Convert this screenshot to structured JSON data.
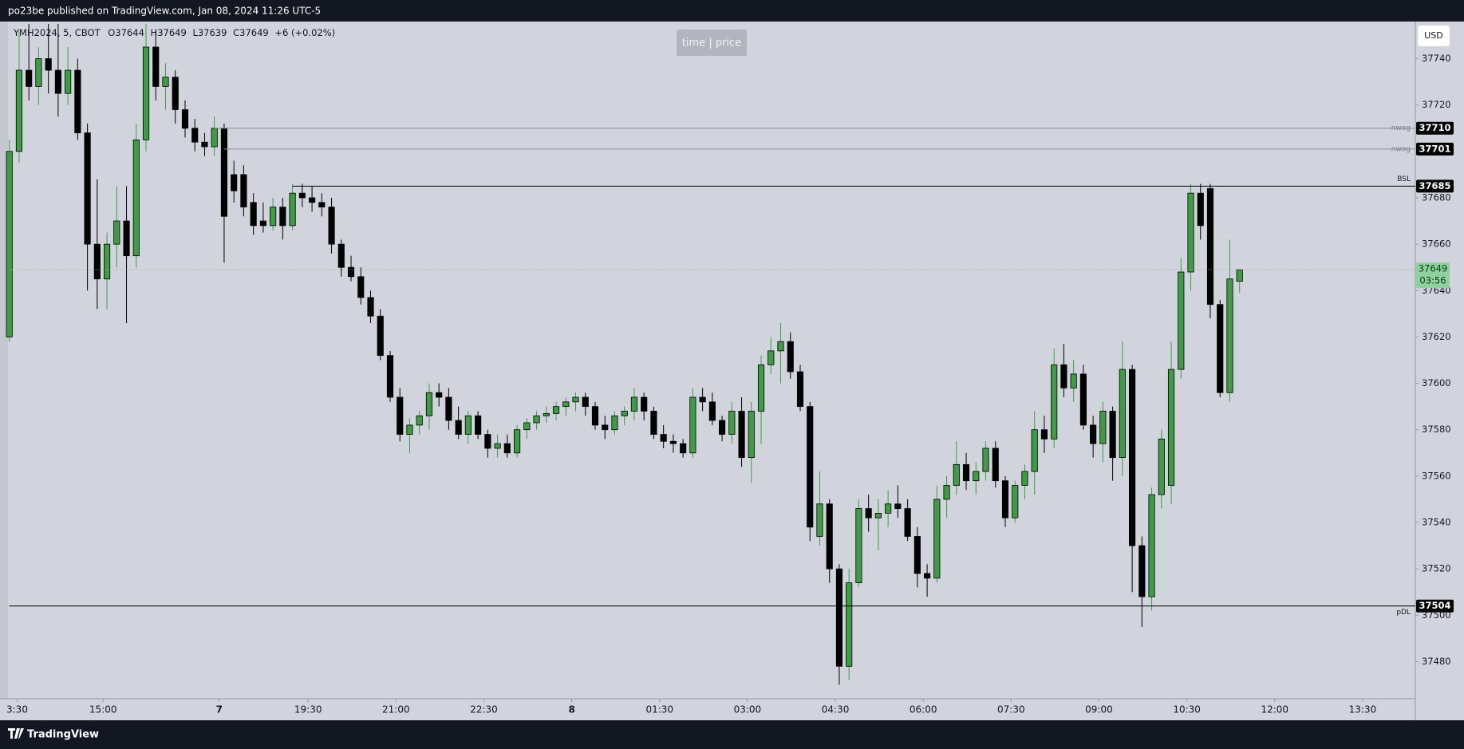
{
  "header": "po23be published on TradingView.com, Jan 08, 2024 11:26 UTC-5",
  "footer": "TradingView",
  "chart_data": {
    "type": "candlestick",
    "legend": {
      "symbol": "YMH2024, 5, CBOT",
      "open": "O37644",
      "high": "H37649",
      "low": "L37639",
      "close": "C37649",
      "change": "+6 (+0.02%)"
    },
    "crosshair_label": "time | price",
    "currency": "USD",
    "countdown": "03:56",
    "up_color": "#3f9b45",
    "down_color": "#000000",
    "grid": false,
    "ylim": [
      37464,
      37756
    ],
    "yticks": [
      37480,
      37500,
      37520,
      37540,
      37560,
      37580,
      37600,
      37620,
      37640,
      37660,
      37680,
      37720,
      37740
    ],
    "xlim": [
      0,
      144
    ],
    "xticks": [
      {
        "value": 0.8,
        "label": "3:30"
      },
      {
        "value": 9.6,
        "label": "15:00"
      },
      {
        "value": 21.5,
        "label": "7"
      },
      {
        "value": 30.6,
        "label": "19:30"
      },
      {
        "value": 39.6,
        "label": "21:00"
      },
      {
        "value": 48.6,
        "label": "22:30"
      },
      {
        "value": 57.6,
        "label": "8"
      },
      {
        "value": 66.6,
        "label": "01:30"
      },
      {
        "value": 75.6,
        "label": "03:00"
      },
      {
        "value": 84.6,
        "label": "04:30"
      },
      {
        "value": 93.6,
        "label": "06:00"
      },
      {
        "value": 102.6,
        "label": "07:30"
      },
      {
        "value": 111.6,
        "label": "09:00"
      },
      {
        "value": 120.6,
        "label": "10:30"
      },
      {
        "value": 129.6,
        "label": "12:00"
      },
      {
        "value": 138.6,
        "label": "13:30"
      }
    ],
    "levels": [
      {
        "name": "nwog",
        "value": 37710,
        "from": 21,
        "color": "#8a8e99"
      },
      {
        "name": "nwog",
        "value": 37701,
        "from": 22,
        "color": "#8a8e99"
      },
      {
        "name": "BSL",
        "value": 37685,
        "from": 29,
        "color": "#000000"
      },
      {
        "name": "pDL",
        "value": 37504,
        "from": 0,
        "color": "#000000"
      }
    ],
    "candles": {
      "open": [
        37620,
        37700,
        37735,
        37728,
        37740,
        37735,
        37725,
        37735,
        37708,
        37660,
        37645,
        37660,
        37670,
        37655,
        37705,
        37745,
        37728,
        37732,
        37718,
        37710,
        37704,
        37702,
        37710,
        37690,
        37690,
        37678,
        37670,
        37668,
        37676,
        37668,
        37682,
        37680,
        37678,
        37676,
        37660,
        37650,
        37646,
        37637,
        37629,
        37612,
        37594,
        37578,
        37582,
        37586,
        37596,
        37594,
        37584,
        37578,
        37586,
        37578,
        37572,
        37574,
        37570,
        37580,
        37583,
        37586,
        37587,
        37590,
        37592,
        37594,
        37590,
        37582,
        37580,
        37586,
        37588,
        37594,
        37588,
        37578,
        37575,
        37574,
        37570,
        37594,
        37592,
        37584,
        37578,
        37588,
        37568,
        37588,
        37608,
        37614,
        37618,
        37605,
        37590,
        37534,
        37548,
        37520,
        37478,
        37514,
        37546,
        37542,
        37544,
        37548,
        37546,
        37534,
        37518,
        37516,
        37550,
        37556,
        37565,
        37558,
        37562,
        37572,
        37558,
        37542,
        37556,
        37562,
        37580,
        37576,
        37608,
        37598,
        37604,
        37582,
        37574,
        37588,
        37568,
        37606,
        37530,
        37508,
        37552,
        37556,
        37606,
        37648,
        37682,
        37684,
        37634,
        37596,
        37644
      ],
      "high": [
        37705,
        37752,
        37755,
        37745,
        37755,
        37755,
        37745,
        37740,
        37712,
        37688,
        37665,
        37685,
        37685,
        37712,
        37755,
        37752,
        37738,
        37735,
        37722,
        37714,
        37708,
        37715,
        37712,
        37696,
        37694,
        37682,
        37678,
        37680,
        37680,
        37686,
        37686,
        37685,
        37682,
        37680,
        37662,
        37655,
        37650,
        37640,
        37632,
        37614,
        37598,
        37585,
        37588,
        37600,
        37600,
        37598,
        37590,
        37588,
        37588,
        37580,
        37578,
        37578,
        37582,
        37585,
        37588,
        37590,
        37592,
        37594,
        37596,
        37596,
        37592,
        37586,
        37588,
        37590,
        37598,
        37596,
        37590,
        37582,
        37578,
        37576,
        37598,
        37598,
        37596,
        37586,
        37592,
        37594,
        37592,
        37612,
        37620,
        37626,
        37622,
        37608,
        37592,
        37562,
        37550,
        37522,
        37520,
        37550,
        37552,
        37550,
        37554,
        37556,
        37550,
        37538,
        37522,
        37556,
        37560,
        37575,
        37570,
        37566,
        37575,
        37575,
        37560,
        37558,
        37565,
        37588,
        37586,
        37615,
        37617,
        37610,
        37608,
        37586,
        37592,
        37590,
        37618,
        37608,
        37534,
        37555,
        37580,
        37618,
        37654,
        37686,
        37686,
        37686,
        37636,
        37662,
        37649
      ],
      "low": [
        37618,
        37695,
        37722,
        37720,
        37725,
        37715,
        37720,
        37705,
        37640,
        37632,
        37632,
        37650,
        37626,
        37650,
        37700,
        37722,
        37718,
        37712,
        37706,
        37700,
        37698,
        37698,
        37652,
        37678,
        37672,
        37664,
        37665,
        37666,
        37662,
        37666,
        37676,
        37674,
        37672,
        37656,
        37646,
        37644,
        37634,
        37626,
        37610,
        37592,
        37575,
        37570,
        37578,
        37580,
        37590,
        37580,
        37576,
        37574,
        37576,
        37568,
        37568,
        37568,
        37568,
        37576,
        37580,
        37583,
        37584,
        37586,
        37588,
        37586,
        37580,
        37576,
        37578,
        37582,
        37584,
        37584,
        37576,
        37572,
        37570,
        37568,
        37568,
        37588,
        37582,
        37575,
        37574,
        37564,
        37557,
        37574,
        37604,
        37600,
        37602,
        37588,
        37532,
        37530,
        37514,
        37470,
        37472,
        37512,
        37536,
        37528,
        37538,
        37542,
        37532,
        37512,
        37508,
        37514,
        37542,
        37552,
        37554,
        37552,
        37558,
        37555,
        37538,
        37540,
        37550,
        37552,
        37570,
        37572,
        37594,
        37592,
        37580,
        37568,
        37566,
        37558,
        37560,
        37510,
        37495,
        37502,
        37546,
        37548,
        37602,
        37640,
        37662,
        37628,
        37594,
        37592,
        37639
      ],
      "close": [
        37700,
        37735,
        37728,
        37740,
        37735,
        37725,
        37735,
        37708,
        37660,
        37645,
        37660,
        37670,
        37655,
        37705,
        37745,
        37728,
        37732,
        37718,
        37710,
        37704,
        37702,
        37710,
        37672,
        37683,
        37676,
        37668,
        37668,
        37676,
        37668,
        37682,
        37680,
        37678,
        37676,
        37660,
        37650,
        37646,
        37637,
        37629,
        37612,
        37594,
        37578,
        37582,
        37586,
        37596,
        37594,
        37584,
        37578,
        37586,
        37578,
        37572,
        37574,
        37570,
        37580,
        37583,
        37586,
        37587,
        37590,
        37592,
        37594,
        37590,
        37582,
        37580,
        37586,
        37588,
        37594,
        37588,
        37578,
        37575,
        37574,
        37570,
        37594,
        37592,
        37584,
        37578,
        37588,
        37568,
        37588,
        37608,
        37614,
        37618,
        37605,
        37590,
        37538,
        37548,
        37520,
        37478,
        37514,
        37546,
        37542,
        37544,
        37548,
        37546,
        37534,
        37518,
        37516,
        37550,
        37556,
        37565,
        37558,
        37562,
        37572,
        37558,
        37542,
        37556,
        37562,
        37580,
        37576,
        37608,
        37598,
        37604,
        37582,
        37574,
        37588,
        37568,
        37606,
        37530,
        37508,
        37552,
        37576,
        37606,
        37648,
        37682,
        37668,
        37634,
        37596,
        37645,
        37649
      ]
    }
  }
}
